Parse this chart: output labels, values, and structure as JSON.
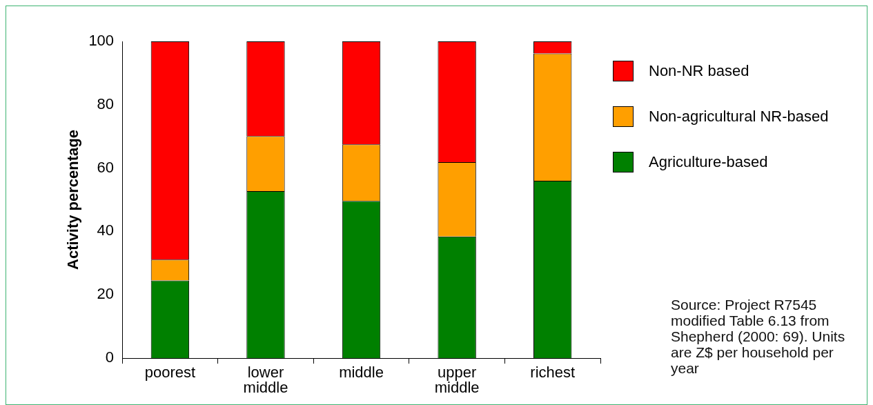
{
  "chart_data": {
    "type": "bar",
    "stacked": true,
    "ylabel": "Activity percentage",
    "categories": [
      "poorest",
      "lower middle",
      "middle",
      "upper middle",
      "richest"
    ],
    "series": [
      {
        "name": "Agriculture-based",
        "color": "#008000",
        "values": [
          24.5,
          52.7,
          49.6,
          38.4,
          56
        ]
      },
      {
        "name": "Non-agricultural NR-based",
        "color": "#ff9f00",
        "values": [
          6.6,
          17.4,
          17.9,
          23.5,
          40.2
        ]
      },
      {
        "name": "Non-NR based",
        "color": "#ff0000",
        "values": [
          68.9,
          29.9,
          32.5,
          38.1,
          3.8
        ]
      }
    ],
    "ylim": [
      0,
      100
    ],
    "yticks": [
      0,
      20,
      40,
      60,
      80,
      100
    ],
    "grid": false,
    "legend": "right",
    "annotations": [
      "Source: Project R7545 modified Table 6.13 from Shepherd (2000: 69). Units are Z$ per household per year"
    ]
  }
}
